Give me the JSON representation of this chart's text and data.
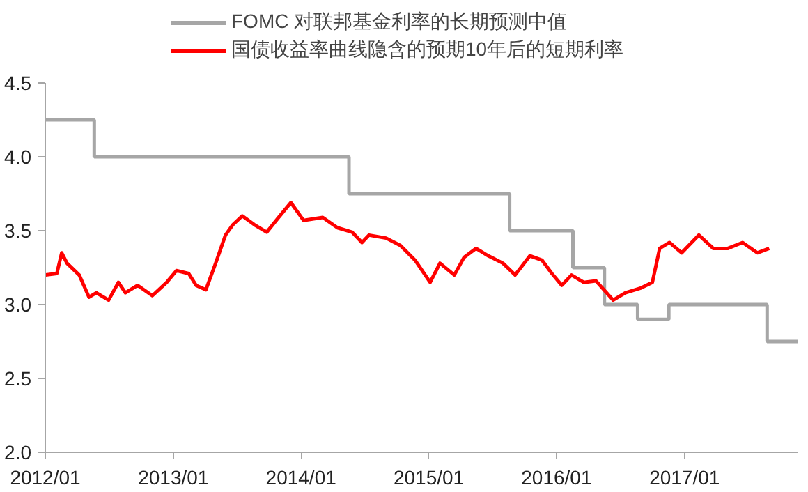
{
  "chart_data": {
    "type": "line",
    "legend": "top",
    "xlim": [
      "2012-01-01",
      "2017-11-20"
    ],
    "xticks": [
      {
        "value": "2012-01-01",
        "label": "2012/01"
      },
      {
        "value": "2013-01-01",
        "label": "2013/01"
      },
      {
        "value": "2014-01-01",
        "label": "2014/01"
      },
      {
        "value": "2015-01-01",
        "label": "2015/01"
      },
      {
        "value": "2016-01-01",
        "label": "2016/01"
      },
      {
        "value": "2017-01-01",
        "label": "2017/01"
      }
    ],
    "ylim": [
      2.0,
      4.5
    ],
    "yticks": [
      {
        "value": 2,
        "label": "2.0"
      },
      2.5,
      {
        "value": 3,
        "label": "3.0"
      },
      3.5,
      {
        "value": 4,
        "label": "4.0"
      },
      4.5
    ],
    "grid": false,
    "series": [
      {
        "name": "FOMC 对联邦基金利率的长期预测中值",
        "type": "step",
        "color": "#a6a6a6",
        "x": [
          "2012-01-01",
          "2012-05-20",
          "2014-05-18",
          "2015-08-20",
          "2016-02-17",
          "2016-05-17",
          "2016-08-20",
          "2016-11-17",
          "2017-08-25",
          "2017-11-20"
        ],
        "values": [
          4.25,
          4.0,
          3.75,
          3.5,
          3.25,
          3.0,
          2.9,
          3.0,
          2.75,
          2.75
        ]
      },
      {
        "name": "国债收益率曲线隐含的预期10年后的短期利率",
        "color": "#ff0000",
        "x": [
          "2012-01-02",
          "2012-02-03",
          "2012-02-17",
          "2012-03-03",
          "2012-04-07",
          "2012-05-05",
          "2012-05-26",
          "2012-06-30",
          "2012-07-28",
          "2012-08-17",
          "2012-09-21",
          "2012-11-02",
          "2012-12-13",
          "2013-01-10",
          "2013-02-14",
          "2013-03-07",
          "2013-04-04",
          "2013-05-02",
          "2013-05-30",
          "2013-06-20",
          "2013-07-17",
          "2013-08-21",
          "2013-09-25",
          "2013-10-29",
          "2013-12-03",
          "2014-01-08",
          "2014-03-04",
          "2014-04-15",
          "2014-05-27",
          "2014-06-24",
          "2014-07-14",
          "2014-09-01",
          "2014-10-12",
          "2014-11-23",
          "2015-01-05",
          "2015-02-02",
          "2015-03-15",
          "2015-04-12",
          "2015-05-16",
          "2015-06-20",
          "2015-08-01",
          "2015-09-05",
          "2015-10-17",
          "2015-11-21",
          "2015-12-19",
          "2016-01-16",
          "2016-02-13",
          "2016-03-19",
          "2016-04-23",
          "2016-06-11",
          "2016-07-16",
          "2016-08-27",
          "2016-10-01",
          "2016-10-22",
          "2016-11-19",
          "2016-12-24",
          "2017-02-11",
          "2017-03-24",
          "2017-05-05",
          "2017-06-16",
          "2017-07-28",
          "2017-08-31"
        ],
        "values": [
          3.2,
          3.21,
          3.35,
          3.28,
          3.2,
          3.05,
          3.08,
          3.03,
          3.15,
          3.08,
          3.13,
          3.06,
          3.15,
          3.23,
          3.21,
          3.13,
          3.1,
          3.28,
          3.47,
          3.54,
          3.6,
          3.54,
          3.49,
          3.59,
          3.69,
          3.57,
          3.59,
          3.52,
          3.49,
          3.42,
          3.47,
          3.45,
          3.4,
          3.3,
          3.15,
          3.28,
          3.2,
          3.32,
          3.38,
          3.33,
          3.28,
          3.2,
          3.33,
          3.3,
          3.21,
          3.13,
          3.2,
          3.15,
          3.16,
          3.03,
          3.08,
          3.11,
          3.15,
          3.38,
          3.42,
          3.35,
          3.47,
          3.38,
          3.38,
          3.42,
          3.35,
          3.38
        ]
      }
    ]
  }
}
